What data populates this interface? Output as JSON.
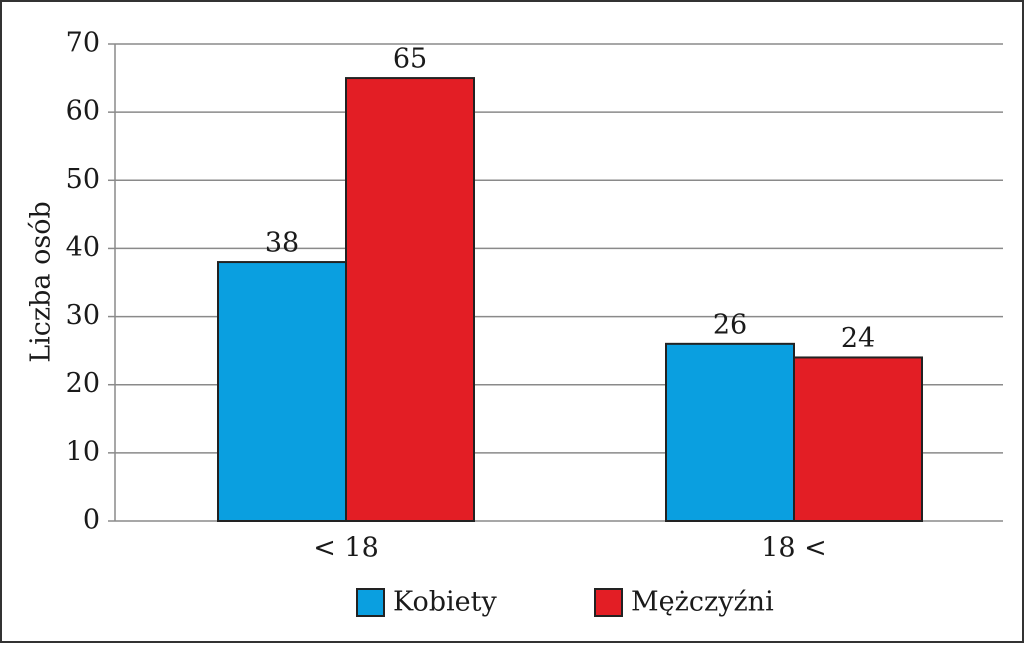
{
  "chart_data": {
    "type": "bar",
    "y_label": "Liczba osób",
    "categories": [
      "< 18",
      "18 <"
    ],
    "series": [
      {
        "name": "Kobiety",
        "color": "#0a9fe0",
        "values": [
          38,
          26
        ]
      },
      {
        "name": "Mężczyźni",
        "color": "#e31e25",
        "values": [
          65,
          24
        ]
      }
    ],
    "ylim": [
      0,
      70
    ],
    "yticks": [
      0,
      10,
      20,
      30,
      40,
      50,
      60,
      70
    ],
    "grid": true,
    "legend": "bottom"
  }
}
